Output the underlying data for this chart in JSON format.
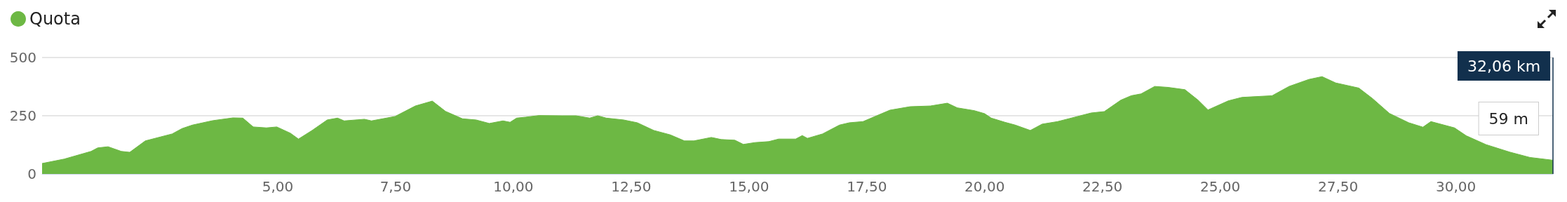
{
  "chart_data": {
    "type": "area",
    "legend": "top left",
    "grid": "y",
    "xlim": [
      0,
      32.06
    ],
    "xticks": [
      {
        "value": 5,
        "label": "5,00"
      },
      {
        "value": 7.5,
        "label": "7,50"
      },
      {
        "value": 10,
        "label": "10,00"
      },
      {
        "value": 12.5,
        "label": "12,50"
      },
      {
        "value": 15,
        "label": "15,00"
      },
      {
        "value": 17.5,
        "label": "17,50"
      },
      {
        "value": 20,
        "label": "20,00"
      },
      {
        "value": 22.5,
        "label": "22,50"
      },
      {
        "value": 25,
        "label": "25,00"
      },
      {
        "value": 27.5,
        "label": "27,50"
      },
      {
        "value": 30,
        "label": "30,00"
      }
    ],
    "ylim": [
      0,
      500
    ],
    "yticks": [
      0,
      250,
      500
    ],
    "series": [
      {
        "name": "Quota",
        "color": "#6db844",
        "x": [
          0,
          0.47,
          1.04,
          1.18,
          1.4,
          1.68,
          1.86,
          2.19,
          2.76,
          2.97,
          3.19,
          3.62,
          4.05,
          4.26,
          4.48,
          4.76,
          4.98,
          5.27,
          5.44,
          5.73,
          6.05,
          6.27,
          6.41,
          6.84,
          6.99,
          7.49,
          7.92,
          8.28,
          8.56,
          8.92,
          9.21,
          9.49,
          9.78,
          9.93,
          10.07,
          10.26,
          10.54,
          11.04,
          11.33,
          11.62,
          11.79,
          11.97,
          12.34,
          12.63,
          12.98,
          13.33,
          13.63,
          13.83,
          14.2,
          14.41,
          14.7,
          14.88,
          15.13,
          15.42,
          15.63,
          15.99,
          16.13,
          16.24,
          16.56,
          16.92,
          17.13,
          17.42,
          17.71,
          17.99,
          18.42,
          18.85,
          19.21,
          19.42,
          19.78,
          20,
          20.14,
          20.43,
          20.65,
          20.97,
          21.22,
          21.55,
          22.26,
          22.54,
          22.89,
          23.11,
          23.32,
          23.61,
          23.89,
          24.25,
          24.53,
          24.74,
          25.17,
          25.46,
          26.1,
          26.46,
          26.88,
          27.16,
          27.45,
          27.94,
          28.23,
          28.59,
          29,
          29.3,
          29.47,
          29.97,
          30.22,
          30.64,
          31.14,
          31.57,
          32.06
        ],
        "values": [
          45,
          64,
          97,
          112,
          117,
          97,
          93,
          142,
          172,
          195,
          210,
          229,
          241,
          240,
          202,
          198,
          202,
          175,
          150,
          187,
          232,
          240,
          228,
          235,
          228,
          247,
          292,
          313,
          269,
          237,
          232,
          217,
          228,
          222,
          240,
          244,
          251,
          250,
          250,
          240,
          250,
          240,
          232,
          220,
          187,
          168,
          142,
          142,
          157,
          148,
          145,
          127,
          135,
          139,
          150,
          150,
          165,
          153,
          172,
          210,
          220,
          225,
          250,
          274,
          289,
          292,
          304,
          284,
          272,
          259,
          240,
          222,
          210,
          187,
          214,
          225,
          262,
          268,
          317,
          336,
          344,
          376,
          372,
          362,
          317,
          275,
          314,
          329,
          336,
          376,
          406,
          418,
          391,
          369,
          324,
          260,
          220,
          201,
          225,
          198,
          164,
          126,
          94,
          71,
          59
        ]
      }
    ],
    "ref_lines": [
      {
        "axis": "x",
        "value": 32.06,
        "label": "32,06 km",
        "color": "#12304d"
      }
    ],
    "annotations": [
      "59 m"
    ]
  }
}
